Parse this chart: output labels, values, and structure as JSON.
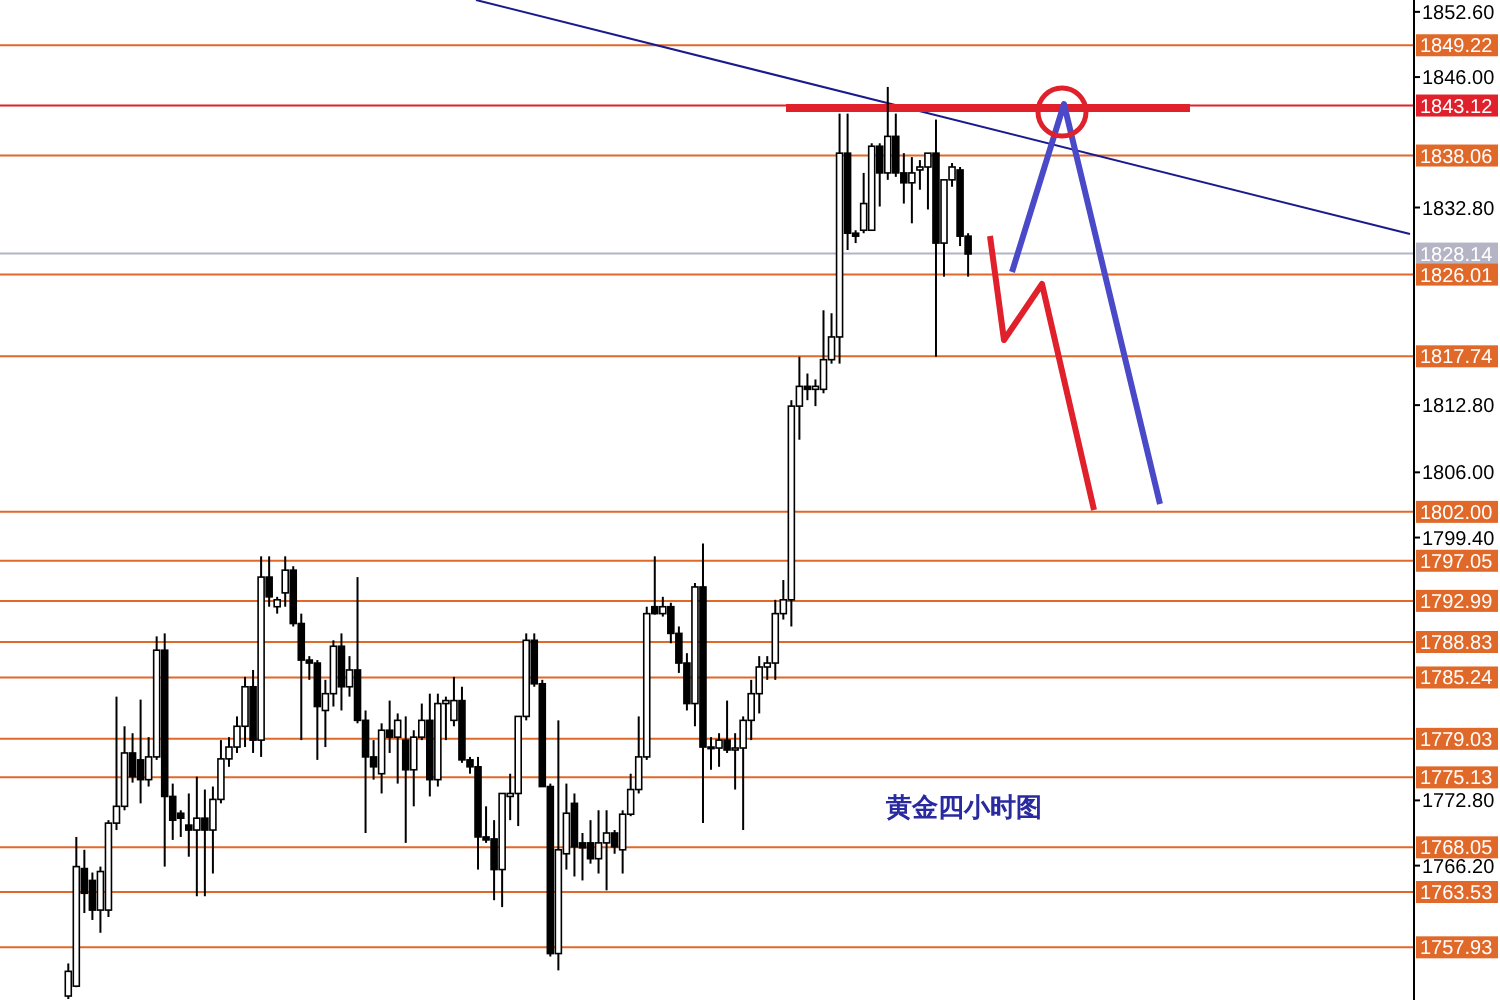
{
  "chart_data": {
    "type": "candlestick",
    "categories": [
      null,
      null,
      null,
      null,
      null,
      null,
      null,
      null,
      null,
      null,
      null,
      null,
      null,
      null,
      null,
      null,
      null,
      null,
      null,
      null,
      null,
      null,
      null,
      null,
      null,
      null,
      null,
      null,
      null,
      null,
      null,
      null,
      null,
      null,
      null,
      null,
      null,
      null,
      null,
      null,
      null,
      null,
      null,
      null,
      null,
      null,
      null,
      null,
      null,
      null,
      null,
      null,
      null,
      null,
      null,
      null,
      null,
      null,
      null,
      null,
      null,
      null,
      null,
      null,
      null,
      null,
      null,
      null,
      null,
      null,
      null,
      null,
      null,
      null,
      null,
      null,
      null,
      null,
      null,
      null,
      null,
      null,
      null,
      null,
      null,
      null,
      null,
      null,
      null,
      null,
      null,
      null,
      null,
      null,
      null,
      null,
      null,
      null,
      null,
      null,
      null,
      null,
      null,
      null,
      null,
      null,
      null,
      null,
      null,
      null,
      null,
      null,
      null,
      null,
      null,
      null,
      null,
      null,
      null,
      null,
      null,
      null,
      null,
      null,
      null,
      null,
      null,
      null,
      null,
      null,
      null,
      null,
      null,
      null,
      null,
      null,
      null,
      null,
      null,
      null,
      null,
      null,
      null,
      null,
      null,
      null,
      null,
      null,
      null,
      null,
      null,
      null,
      null,
      null,
      null,
      null,
      null,
      null,
      null,
      null,
      null,
      null,
      null,
      null,
      null,
      null,
      null,
      null,
      null,
      null,
      null,
      null,
      null,
      null,
      null,
      null
    ],
    "ohlc": [
      null,
      null,
      null,
      null,
      null,
      null,
      null,
      null,
      [
        1753.0,
        1756.3,
        1752.7,
        1755.5
      ],
      [
        1754.0,
        1769.1,
        1753.9,
        1766.1
      ],
      [
        1765.9,
        1767.8,
        1761.4,
        1763.4
      ],
      [
        1764.7,
        1765.5,
        1760.7,
        1761.7
      ],
      [
        1761.7,
        1766.1,
        1759.4,
        1765.6
      ],
      [
        1761.7,
        1770.8,
        1761.0,
        1770.5
      ],
      [
        1770.5,
        1783.3,
        1769.8,
        1772.2
      ],
      [
        1772.2,
        1780.3,
        1771.8,
        1777.6
      ],
      [
        1777.6,
        1779.6,
        1774.6,
        1775.2
      ],
      [
        1776.9,
        1783.0,
        1772.5,
        1774.9
      ],
      [
        1774.9,
        1779.2,
        1774.2,
        1777.2
      ],
      [
        1777.2,
        1789.4,
        1776.9,
        1788.0
      ],
      [
        1788.0,
        1789.7,
        1766.1,
        1773.2
      ],
      [
        1773.2,
        1774.5,
        1768.8,
        1770.8
      ],
      [
        1771.5,
        1771.8,
        1769.1,
        1771.0
      ],
      [
        1770.3,
        1773.5,
        1767.1,
        1769.8
      ],
      [
        1769.8,
        1775.2,
        1763.1,
        1771.0
      ],
      [
        1771.0,
        1773.9,
        1763.1,
        1769.8
      ],
      [
        1769.8,
        1774.2,
        1765.4,
        1772.9
      ],
      [
        1772.9,
        1778.9,
        1772.5,
        1777.0
      ],
      [
        1777.0,
        1779.2,
        1776.2,
        1778.2
      ],
      [
        1778.2,
        1781.3,
        1777.6,
        1780.3
      ],
      [
        1780.3,
        1785.3,
        1778.2,
        1784.3
      ],
      [
        1784.3,
        1786.0,
        1777.6,
        1778.9
      ],
      [
        1778.9,
        1797.5,
        1777.2,
        1795.4
      ],
      [
        1795.4,
        1797.5,
        1792.4,
        1793.4
      ],
      [
        1792.4,
        1793.4,
        1791.7,
        1793.1
      ],
      [
        1793.8,
        1797.5,
        1792.4,
        1796.1
      ],
      [
        1796.1,
        1796.5,
        1790.4,
        1790.7
      ],
      [
        1790.7,
        1791.7,
        1778.9,
        1787.0
      ],
      [
        1787.0,
        1787.4,
        1785.0,
        1786.7
      ],
      [
        1786.7,
        1787.0,
        1776.9,
        1782.3
      ],
      [
        1781.9,
        1785.0,
        1778.2,
        1783.6
      ],
      [
        1783.6,
        1789.0,
        1782.3,
        1788.4
      ],
      [
        1788.4,
        1789.7,
        1781.9,
        1784.3
      ],
      [
        1784.3,
        1787.4,
        1783.3,
        1786.0
      ],
      [
        1786.0,
        1795.4,
        1780.6,
        1780.9
      ],
      [
        1780.9,
        1781.9,
        1769.5,
        1777.2
      ],
      [
        1777.2,
        1778.9,
        1774.9,
        1776.2
      ],
      [
        1775.5,
        1780.6,
        1773.5,
        1779.9
      ],
      [
        1779.9,
        1782.9,
        1777.6,
        1779.2
      ],
      [
        1779.2,
        1781.6,
        1774.5,
        1780.9
      ],
      [
        1778.9,
        1781.3,
        1768.5,
        1775.9
      ],
      [
        1775.9,
        1779.9,
        1772.2,
        1779.2
      ],
      [
        1779.2,
        1782.6,
        1778.9,
        1780.9
      ],
      [
        1780.9,
        1783.6,
        1773.2,
        1774.9
      ],
      [
        1774.9,
        1783.6,
        1774.2,
        1782.6
      ],
      [
        1782.6,
        1783.3,
        1778.9,
        1782.9
      ],
      [
        1780.9,
        1785.3,
        1780.3,
        1782.9
      ],
      [
        1782.9,
        1784.3,
        1776.6,
        1776.9
      ],
      [
        1776.9,
        1777.2,
        1775.5,
        1776.2
      ],
      [
        1776.2,
        1777.2,
        1765.8,
        1769.1
      ],
      [
        1769.1,
        1772.2,
        1768.5,
        1768.8
      ],
      [
        1768.9,
        1770.8,
        1762.7,
        1765.8
      ],
      [
        1765.8,
        1773.5,
        1762.0,
        1773.5
      ],
      [
        1773.2,
        1775.5,
        1770.8,
        1773.5
      ],
      [
        1773.5,
        1781.3,
        1770.2,
        1781.3
      ],
      [
        1781.3,
        1789.7,
        1780.9,
        1789.0
      ],
      [
        1789.0,
        1789.7,
        1784.3,
        1784.6
      ],
      [
        1784.6,
        1785.0,
        1774.2,
        1774.2
      ],
      [
        1774.2,
        1774.5,
        1757.0,
        1757.3
      ],
      [
        1757.3,
        1780.9,
        1755.6,
        1767.8
      ],
      [
        1767.4,
        1774.5,
        1765.8,
        1771.5
      ],
      [
        1772.5,
        1773.5,
        1765.1,
        1768.1
      ],
      [
        1768.5,
        1769.5,
        1764.7,
        1768.0
      ],
      [
        1768.5,
        1770.8,
        1766.4,
        1766.9
      ],
      [
        1766.9,
        1771.8,
        1765.4,
        1768.5
      ],
      [
        1768.5,
        1771.8,
        1763.7,
        1769.5
      ],
      [
        1769.5,
        1769.8,
        1767.4,
        1768.1
      ],
      [
        1767.8,
        1771.8,
        1765.4,
        1771.4
      ],
      [
        1771.4,
        1775.5,
        1771.2,
        1773.9
      ],
      [
        1773.9,
        1781.3,
        1773.5,
        1777.2
      ],
      [
        1777.2,
        1792.4,
        1776.9,
        1791.7
      ],
      [
        1792.4,
        1797.5,
        1791.6,
        1791.7
      ],
      [
        1791.7,
        1793.4,
        1791.4,
        1792.4
      ],
      [
        1792.4,
        1792.8,
        1788.7,
        1789.7
      ],
      [
        1789.7,
        1790.4,
        1785.7,
        1786.7
      ],
      [
        1786.7,
        1787.7,
        1781.9,
        1782.6
      ],
      [
        1782.6,
        1794.8,
        1780.3,
        1794.4
      ],
      [
        1794.4,
        1798.8,
        1770.5,
        1778.2
      ],
      [
        1778.2,
        1779.2,
        1775.9,
        1778.1
      ],
      [
        1778.1,
        1779.6,
        1776.2,
        1778.9
      ],
      [
        1778.9,
        1782.9,
        1777.6,
        1777.9
      ],
      [
        1777.9,
        1779.6,
        1773.9,
        1778.1
      ],
      [
        1778.1,
        1781.3,
        1769.8,
        1780.9
      ],
      [
        1780.9,
        1785.0,
        1778.9,
        1783.6
      ],
      [
        1783.6,
        1787.4,
        1781.6,
        1786.3
      ],
      [
        1786.3,
        1787.4,
        1785.0,
        1786.7
      ],
      [
        1786.7,
        1793.1,
        1785.0,
        1791.7
      ],
      [
        1791.7,
        1795.1,
        1791.1,
        1793.1
      ],
      [
        1793.1,
        1813.3,
        1790.4,
        1812.7
      ],
      [
        1812.7,
        1817.7,
        1809.3,
        1814.7
      ],
      [
        1814.7,
        1816.0,
        1813.3,
        1814.4
      ],
      [
        1814.4,
        1815.4,
        1812.7,
        1814.7
      ],
      [
        1814.4,
        1822.4,
        1814.0,
        1817.4
      ],
      [
        1817.4,
        1822.1,
        1817.0,
        1819.7
      ],
      [
        1819.7,
        1842.3,
        1817.0,
        1838.3
      ],
      [
        1838.3,
        1842.3,
        1828.5,
        1830.2
      ],
      [
        1830.2,
        1830.5,
        1829.2,
        1829.9
      ],
      [
        1830.5,
        1836.3,
        1830.2,
        1833.2
      ],
      [
        1830.5,
        1839.3,
        1830.5,
        1839.0
      ],
      [
        1839.0,
        1839.3,
        1832.9,
        1836.3
      ],
      [
        1836.3,
        1845.0,
        1835.6,
        1840.0
      ],
      [
        1840.0,
        1842.3,
        1835.9,
        1836.3
      ],
      [
        1836.3,
        1838.3,
        1833.2,
        1835.3
      ],
      [
        1835.3,
        1837.9,
        1831.2,
        1836.3
      ],
      [
        1836.6,
        1837.6,
        1834.6,
        1836.9
      ],
      [
        1836.9,
        1838.3,
        1832.6,
        1838.3
      ],
      [
        1838.3,
        1841.7,
        1817.7,
        1829.2
      ],
      [
        1829.2,
        1835.6,
        1825.8,
        1835.6
      ],
      [
        1835.6,
        1837.3,
        1834.9,
        1836.9
      ],
      [
        1836.6,
        1836.9,
        1828.9,
        1829.9
      ],
      [
        1829.9,
        1830.2,
        1825.8,
        1828.1
      ],
      null,
      null,
      null,
      null,
      null,
      null,
      null,
      null,
      null,
      null,
      null,
      null,
      null,
      null,
      null,
      null,
      null,
      null,
      null,
      null,
      null,
      null,
      null,
      null,
      null,
      null,
      null,
      null,
      null,
      null,
      null,
      null,
      null,
      null,
      null,
      null,
      null,
      null,
      null,
      null,
      null,
      null,
      null,
      null,
      null,
      null,
      null,
      null,
      null,
      null,
      null,
      null,
      null,
      null,
      null
    ],
    "ylim": [
      1752.6,
      1853.8
    ],
    "yticks": [
      {
        "value": 1852.6,
        "label": "1852.60"
      },
      {
        "value": 1846,
        "label": "1846.00"
      },
      {
        "value": 1832.8,
        "label": "1832.80"
      },
      {
        "value": 1812.8,
        "label": "1812.80"
      },
      {
        "value": 1806,
        "label": "1806.00"
      },
      {
        "value": 1799.4,
        "label": "1799.40"
      },
      {
        "value": 1772.8,
        "label": "1772.80"
      },
      {
        "value": 1766.2,
        "label": "1766.20"
      }
    ],
    "tick_labels": "y",
    "ref_lines": [
      {
        "axis": "y",
        "value": 1849.22,
        "label": "1849.22",
        "color": "#e0692a"
      },
      {
        "axis": "y",
        "value": 1843.12,
        "label": "1843.12",
        "color": "#e0202a"
      },
      {
        "axis": "y",
        "value": 1838.06,
        "label": "1838.06",
        "color": "#e0692a"
      },
      {
        "axis": "y",
        "value": 1828.14,
        "label": "1828.14",
        "color": "#b4b4c4"
      },
      {
        "axis": "y",
        "value": 1826.01,
        "label": "1826.01",
        "color": "#e0692a"
      },
      {
        "axis": "y",
        "value": 1817.74,
        "label": "1817.74",
        "color": "#e0692a"
      },
      {
        "axis": "y",
        "value": 1802.0,
        "label": "1802.00",
        "color": "#e0692a"
      },
      {
        "axis": "y",
        "value": 1797.05,
        "label": "1797.05",
        "color": "#e0692a"
      },
      {
        "axis": "y",
        "value": 1792.99,
        "label": "1792.99",
        "color": "#e0692a"
      },
      {
        "axis": "y",
        "value": 1788.83,
        "label": "1788.83",
        "color": "#e0692a"
      },
      {
        "axis": "y",
        "value": 1785.24,
        "label": "1785.24",
        "color": "#e0692a"
      },
      {
        "axis": "y",
        "value": 1779.03,
        "label": "1779.03",
        "color": "#e0692a"
      },
      {
        "axis": "y",
        "value": 1775.13,
        "label": "1775.13",
        "color": "#e0692a"
      },
      {
        "axis": "y",
        "value": 1768.05,
        "label": "1768.05",
        "color": "#e0692a"
      },
      {
        "axis": "y",
        "value": 1763.53,
        "label": "1763.53",
        "color": "#e0692a"
      },
      {
        "axis": "y",
        "value": 1757.93,
        "label": "1757.93",
        "color": "#e0692a"
      }
    ],
    "annotations": [
      "黄金四小时图"
    ]
  }
}
